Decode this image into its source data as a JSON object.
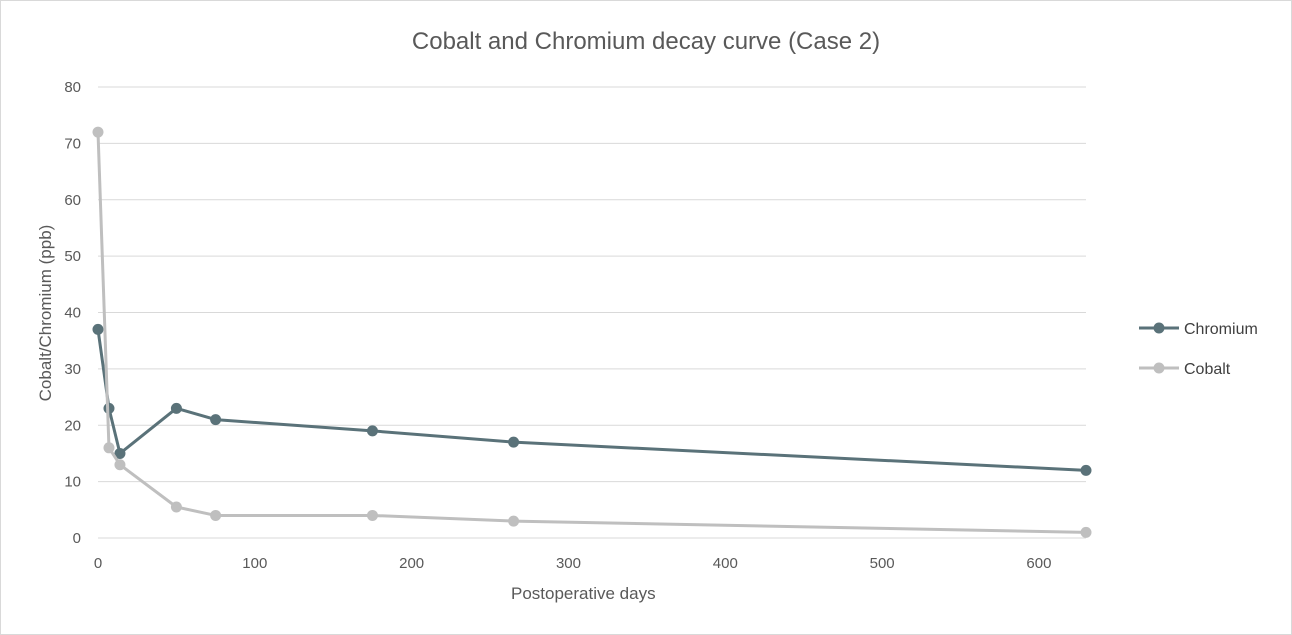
{
  "chart_data": {
    "type": "line",
    "title": "Cobalt and Chromium decay curve (Case 2)",
    "xlabel": "Postoperative days",
    "ylabel": "Cobalt/Chromium (ppb)",
    "xlim": [
      0,
      630
    ],
    "ylim": [
      0,
      80
    ],
    "xticks": [
      0,
      100,
      200,
      300,
      400,
      500,
      600
    ],
    "yticks": [
      0,
      10,
      20,
      30,
      40,
      50,
      60,
      70,
      80
    ],
    "grid": true,
    "legend_position": "right",
    "series": [
      {
        "name": "Chromium",
        "color": "#5a7279",
        "points": [
          [
            0,
            37
          ],
          [
            7,
            23
          ],
          [
            14,
            15
          ],
          [
            50,
            23
          ],
          [
            75,
            21
          ],
          [
            175,
            19
          ],
          [
            265,
            17
          ],
          [
            630,
            12
          ]
        ]
      },
      {
        "name": "Cobalt",
        "color": "#bfbfbf",
        "points": [
          [
            0,
            72
          ],
          [
            7,
            16
          ],
          [
            14,
            13
          ],
          [
            50,
            5.5
          ],
          [
            75,
            4
          ],
          [
            175,
            4
          ],
          [
            265,
            3
          ],
          [
            630,
            1
          ]
        ]
      }
    ]
  }
}
